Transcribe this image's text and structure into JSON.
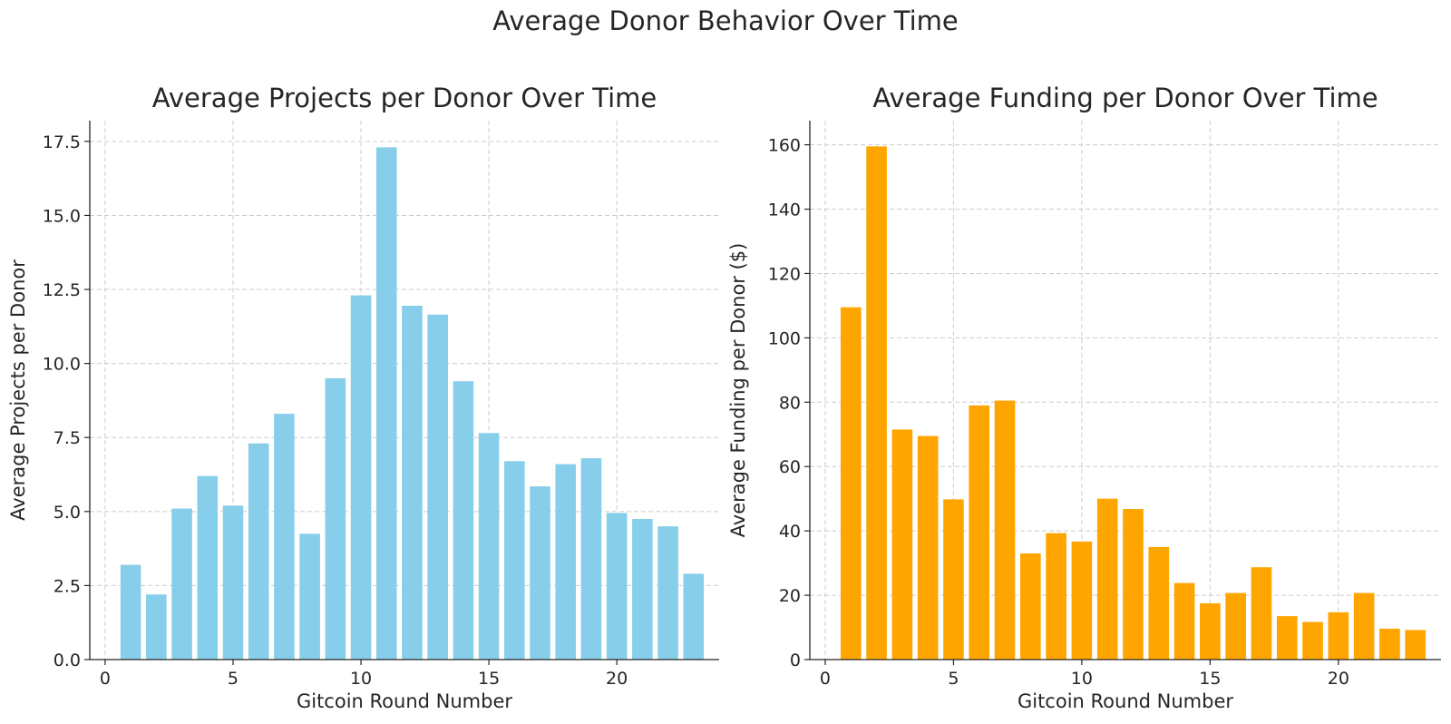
{
  "figure": {
    "title": "Average Donor Behavior Over Time"
  },
  "chart_data": [
    {
      "type": "bar",
      "title": "Average Projects per Donor Over Time",
      "xlabel": "Gitcoin Round Number",
      "ylabel": "Average Projects per Donor",
      "x": [
        1,
        2,
        3,
        4,
        5,
        6,
        7,
        8,
        9,
        10,
        11,
        12,
        13,
        14,
        15,
        16,
        17,
        18,
        19,
        20,
        21,
        22,
        23
      ],
      "values": [
        3.2,
        2.2,
        5.1,
        6.2,
        5.2,
        7.3,
        8.3,
        4.25,
        9.5,
        12.3,
        17.3,
        11.95,
        11.65,
        9.4,
        7.65,
        6.7,
        5.85,
        6.6,
        6.8,
        4.95,
        4.75,
        4.5,
        2.9
      ],
      "xlim": [
        -0.6,
        24.0
      ],
      "ylim": [
        0,
        18.2
      ],
      "xticks": [
        0,
        5,
        10,
        15,
        20
      ],
      "xtick_labels": [
        "0",
        "5",
        "10",
        "15",
        "20"
      ],
      "yticks": [
        0,
        2.5,
        5,
        7.5,
        10,
        12.5,
        15,
        17.5
      ],
      "ytick_labels": [
        "0.0",
        "2.5",
        "5.0",
        "7.5",
        "10.0",
        "12.5",
        "15.0",
        "17.5"
      ],
      "grid": true,
      "color": "#87CEEB"
    },
    {
      "type": "bar",
      "title": "Average Funding per Donor Over Time",
      "xlabel": "Gitcoin Round Number",
      "ylabel": "Average Funding per Donor ($)",
      "x": [
        1,
        2,
        3,
        4,
        5,
        6,
        7,
        8,
        9,
        10,
        11,
        12,
        13,
        14,
        15,
        16,
        17,
        18,
        19,
        20,
        21,
        22,
        23
      ],
      "values": [
        109.5,
        159.5,
        71.5,
        69.5,
        49.8,
        79,
        80.5,
        33,
        39.3,
        36.7,
        50,
        46.8,
        35,
        23.8,
        17.5,
        20.7,
        28.7,
        13.5,
        11.7,
        14.7,
        20.7,
        9.6,
        9.2
      ],
      "xlim": [
        -0.6,
        24.0
      ],
      "ylim": [
        0,
        167.5
      ],
      "xticks": [
        0,
        5,
        10,
        15,
        20
      ],
      "xtick_labels": [
        "0",
        "5",
        "10",
        "15",
        "20"
      ],
      "yticks": [
        0,
        20,
        40,
        60,
        80,
        100,
        120,
        140,
        160
      ],
      "ytick_labels": [
        "0",
        "20",
        "40",
        "60",
        "80",
        "100",
        "120",
        "140",
        "160"
      ],
      "grid": true,
      "color": "#FFA500"
    }
  ]
}
